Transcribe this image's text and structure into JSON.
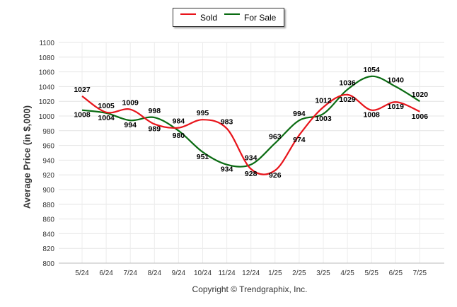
{
  "chart_data": {
    "type": "line",
    "categories": [
      "5/24",
      "6/24",
      "7/24",
      "8/24",
      "9/24",
      "10/24",
      "11/24",
      "12/24",
      "1/25",
      "2/25",
      "3/25",
      "4/25",
      "5/25",
      "6/25",
      "7/25"
    ],
    "series": [
      {
        "name": "Sold",
        "color": "#e8141b",
        "values": [
          1027,
          1005,
          1009,
          989,
          984,
          995,
          983,
          928,
          926,
          974,
          1012,
          1029,
          1008,
          1019,
          1006
        ]
      },
      {
        "name": "For Sale",
        "color": "#0a6b12",
        "values": [
          1008,
          1004,
          994,
          998,
          980,
          951,
          934,
          934,
          963,
          994,
          1003,
          1036,
          1054,
          1040,
          1020
        ]
      }
    ],
    "ylabel": "Average Price (in $,000)",
    "ylim": [
      800,
      1100
    ],
    "yticks": [
      800,
      820,
      840,
      860,
      880,
      900,
      920,
      940,
      960,
      980,
      1000,
      1020,
      1040,
      1060,
      1080,
      1100
    ],
    "grid": true,
    "legend_position": "top"
  },
  "footer": "Copyright © Trendgraphix, Inc."
}
